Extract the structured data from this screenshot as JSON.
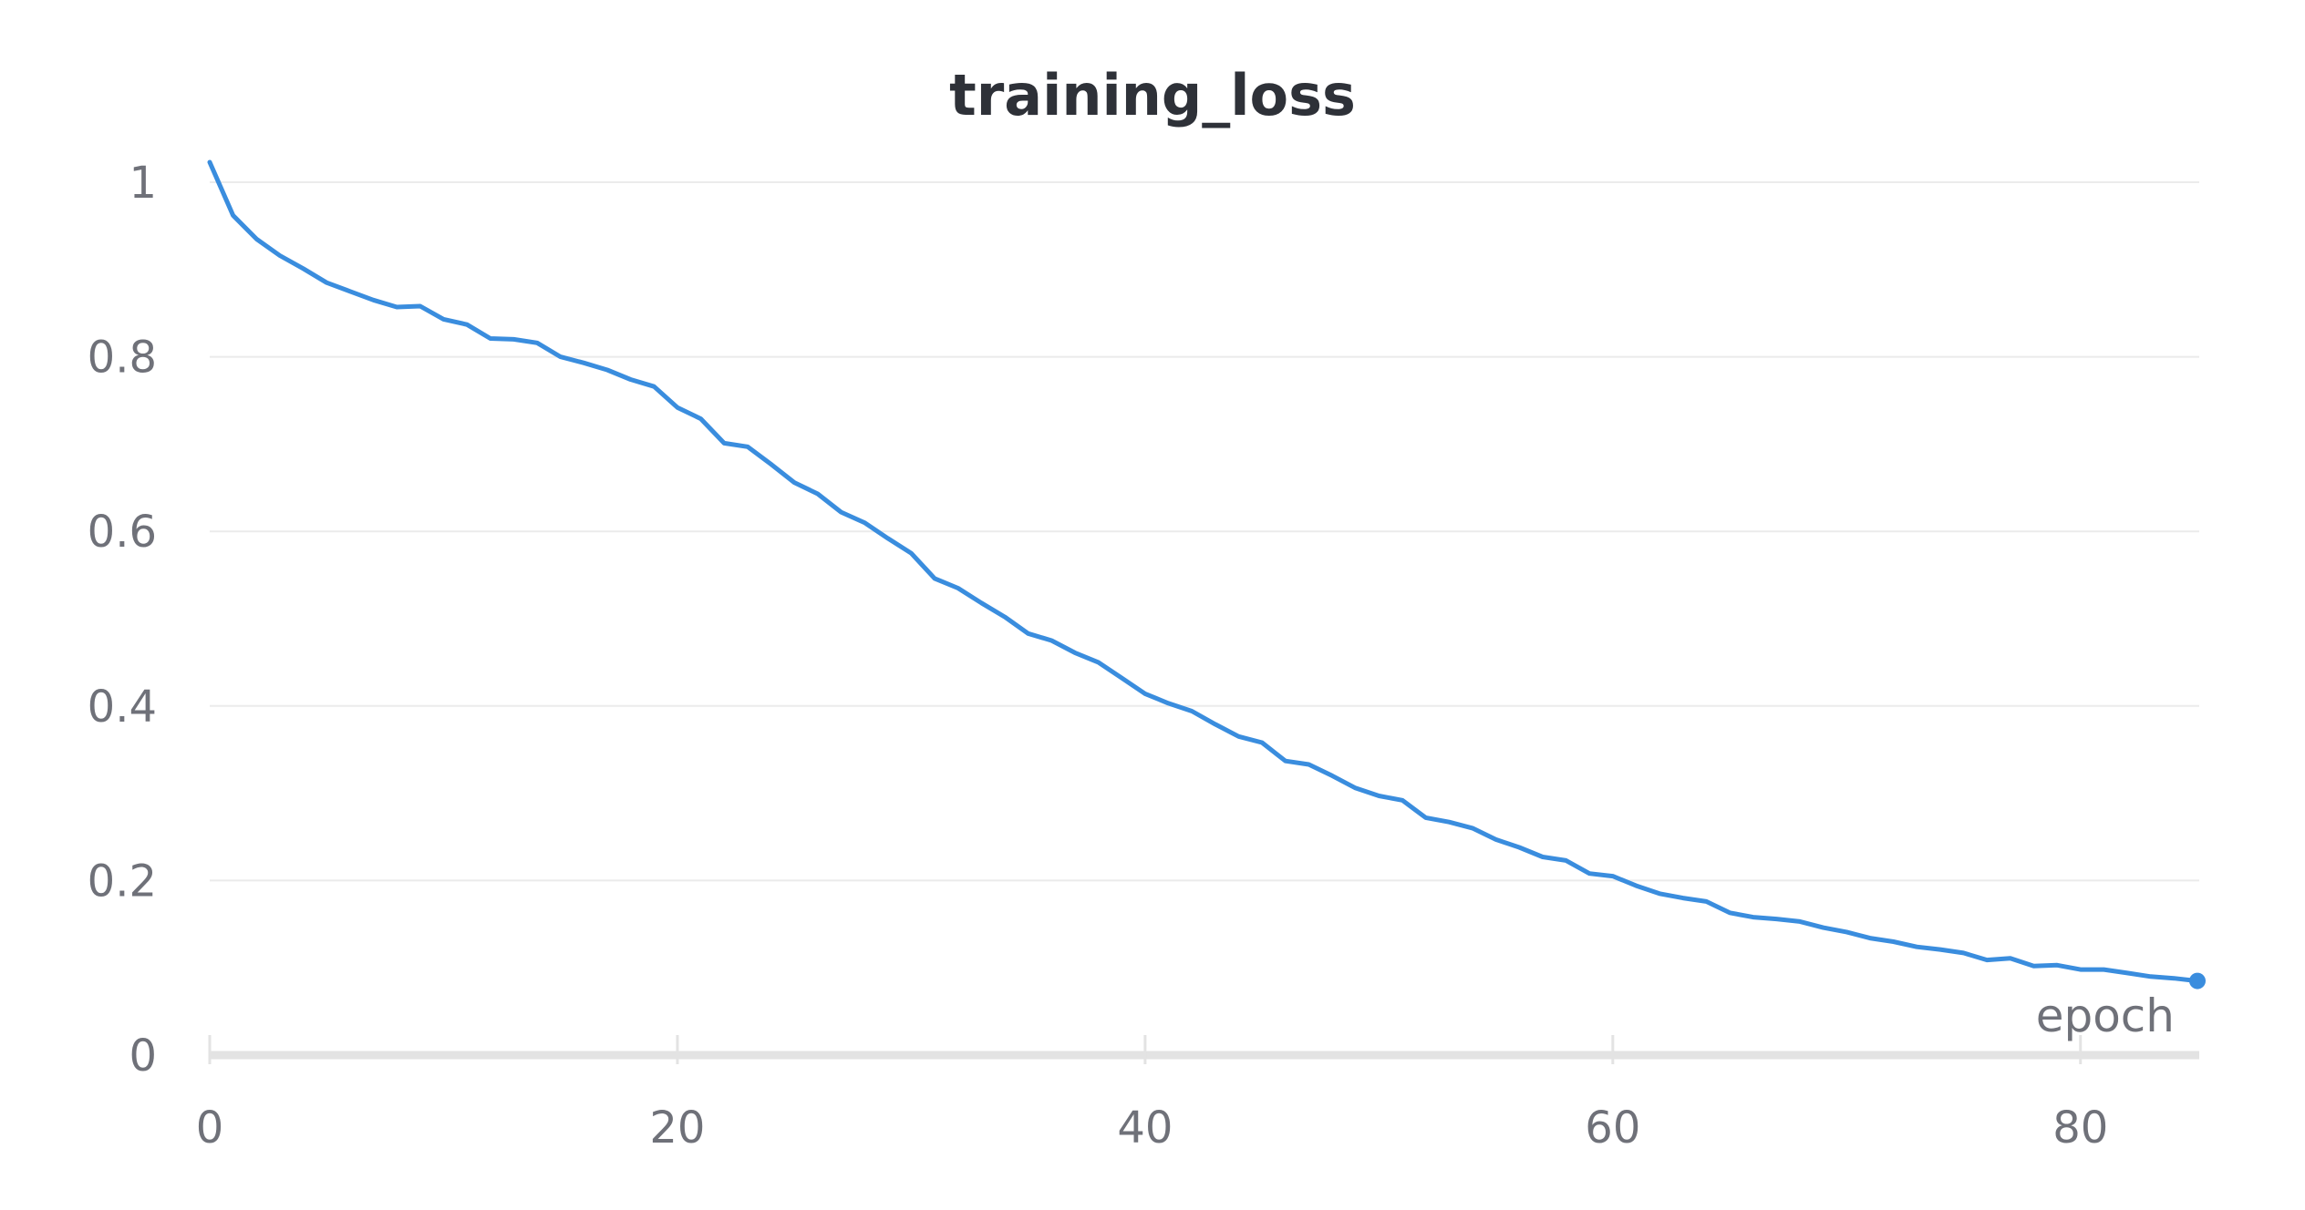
{
  "chart_data": {
    "type": "line",
    "title": "training_loss",
    "xlabel": "epoch",
    "ylabel": "",
    "xlim": [
      0,
      85
    ],
    "ylim": [
      0,
      1.0
    ],
    "x_ticks": [
      "0",
      "20",
      "40",
      "60",
      "80"
    ],
    "x_tick_values": [
      0,
      20,
      40,
      60,
      80
    ],
    "y_ticks": [
      "0",
      "0.2",
      "0.4",
      "0.6",
      "0.8",
      "1"
    ],
    "y_tick_values": [
      0,
      0.2,
      0.4,
      0.6,
      0.8,
      1.0
    ],
    "grid": "horizontal",
    "legend": "none",
    "colors": {
      "series": "#3a8dde",
      "grid": "#ebebeb",
      "axis": "#e3e3e3",
      "text": "#6f7179",
      "title": "#2e3138"
    },
    "series": [
      {
        "x": [
          0,
          1,
          2,
          3,
          4,
          5,
          6,
          7,
          8,
          9,
          10,
          11,
          12,
          13,
          14,
          15,
          16,
          17,
          18,
          19,
          20,
          21,
          22,
          23,
          24,
          25,
          26,
          27,
          28,
          29,
          30,
          31,
          32,
          33,
          34,
          35,
          36,
          37,
          38,
          39,
          40,
          41,
          42,
          43,
          44,
          45,
          46,
          47,
          48,
          49,
          50,
          51,
          52,
          53,
          54,
          55,
          56,
          57,
          58,
          59,
          60,
          61,
          62,
          63,
          64,
          65,
          66,
          67,
          68,
          69,
          70,
          71,
          72,
          73,
          74,
          75,
          76,
          77,
          78,
          79,
          80,
          81,
          82,
          83,
          84,
          85
        ],
        "values": [
          1.023,
          0.962,
          0.935,
          0.916,
          0.901,
          0.885,
          0.875,
          0.865,
          0.857,
          0.858,
          0.843,
          0.837,
          0.821,
          0.82,
          0.816,
          0.8,
          0.793,
          0.785,
          0.774,
          0.766,
          0.742,
          0.729,
          0.701,
          0.697,
          0.677,
          0.656,
          0.643,
          0.622,
          0.61,
          0.592,
          0.575,
          0.546,
          0.535,
          0.518,
          0.502,
          0.483,
          0.475,
          0.461,
          0.45,
          0.432,
          0.414,
          0.403,
          0.394,
          0.379,
          0.365,
          0.358,
          0.337,
          0.333,
          0.32,
          0.306,
          0.297,
          0.292,
          0.272,
          0.267,
          0.26,
          0.247,
          0.238,
          0.227,
          0.223,
          0.208,
          0.205,
          0.194,
          0.185,
          0.18,
          0.176,
          0.163,
          0.158,
          0.156,
          0.153,
          0.146,
          0.141,
          0.134,
          0.13,
          0.124,
          0.121,
          0.117,
          0.109,
          0.111,
          0.102,
          0.103,
          0.098,
          0.098,
          0.094,
          0.09,
          0.088,
          0.085
        ]
      }
    ]
  }
}
